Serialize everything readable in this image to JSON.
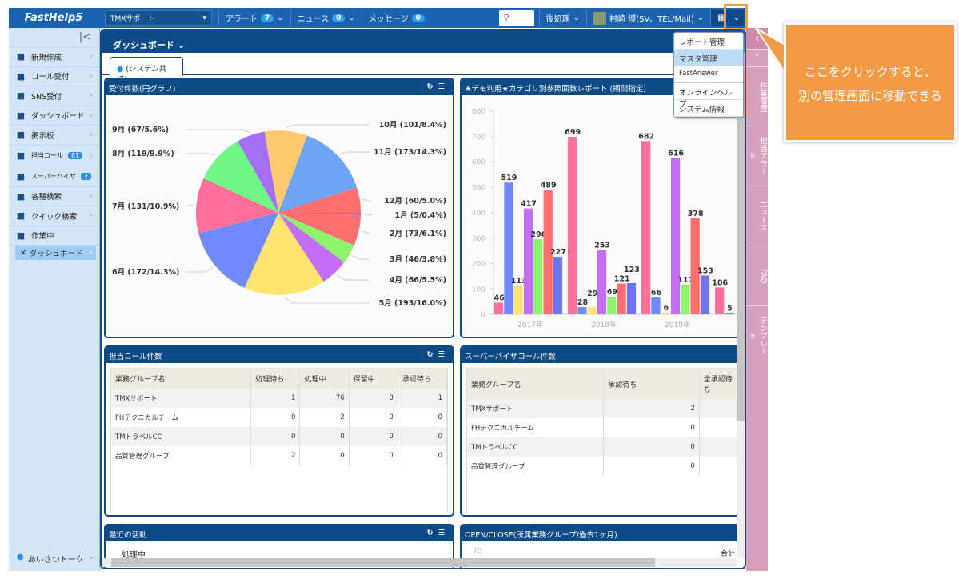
{
  "topbar": {
    "logo": "FastHelp5",
    "group": "TMXサポート",
    "alert": "アラート",
    "alert_count": "7",
    "news": "ニュース",
    "news_count": "0",
    "message": "メッセージ",
    "message_count": "0",
    "search_icon": "search-icon",
    "after": "後処理",
    "user": "村崎 博(SV、TEL/Mail)"
  },
  "sidebar": {
    "items": [
      {
        "label": "新規作成",
        "icon": "new-icon"
      },
      {
        "label": "コール受付",
        "icon": "person-icon"
      },
      {
        "label": "SNS受付",
        "icon": "sns-icon"
      },
      {
        "label": "ダッシュボード",
        "icon": "gauge-icon"
      },
      {
        "label": "掲示板",
        "icon": "board-icon"
      },
      {
        "label": "担当コール",
        "badge": "81",
        "icon": "headset-icon"
      },
      {
        "label": "スーパーバイザ",
        "badge": "2",
        "icon": "sv-icon"
      },
      {
        "label": "各種検索",
        "icon": "search-icon"
      },
      {
        "label": "クイック検索",
        "icon": "quick-search-icon"
      },
      {
        "label": "作業中",
        "icon": "check-icon"
      }
    ],
    "active": "ダッシュボード",
    "footer": "あいさつトーク"
  },
  "main": {
    "title": "ダッシュボード",
    "tab": "(システム共通)"
  },
  "menu": [
    "レポート管理",
    "マスタ管理",
    "FastAnswer",
    "オンラインヘルプ",
    "システム情報"
  ],
  "right_tabs": [
    "作業履歴",
    "担当アラート",
    "ニュース",
    "FAQ",
    "テンプレート"
  ],
  "callout": {
    "line1": "ここをクリックすると、",
    "line2": "別の管理画面に移動できる"
  },
  "widgets": {
    "pie_title": "受付件数(円グラフ)",
    "bar_title": "★デモ利用★カテゴリ別参照回数レポート (期間指定)",
    "calls": {
      "title": "担当コール件数",
      "headers": [
        "業務グループ名",
        "処理待ち",
        "処理中",
        "保留中",
        "承認待ち"
      ],
      "rows": [
        [
          "TMXサポート",
          "1",
          "76",
          "0",
          "1"
        ],
        [
          "FHテクニカルチーム",
          "0",
          "2",
          "0",
          "0"
        ],
        [
          "TMトラベルCC",
          "0",
          "0",
          "0",
          "0"
        ],
        [
          "品質管理グループ",
          "2",
          "0",
          "0",
          "0"
        ]
      ]
    },
    "sv": {
      "title": "スーパーバイザコール件数",
      "headers": [
        "業務グループ名",
        "承認待ち",
        "全承認待ち"
      ],
      "rows": [
        [
          "TMXサポート",
          "2",
          ""
        ],
        [
          "FHテクニカルチーム",
          "0",
          ""
        ],
        [
          "TMトラベルCC",
          "0",
          ""
        ],
        [
          "品質管理グループ",
          "0",
          ""
        ]
      ]
    },
    "activity": {
      "title": "最近の活動",
      "item": "処理中"
    },
    "openclose": {
      "title": "OPEN/CLOSE(所属業務グループ/過去1ヶ月)",
      "ytick": "70",
      "legend": "合計"
    }
  },
  "chart_data": [
    {
      "type": "pie",
      "title": "受付件数(円グラフ)",
      "labels": [
        "1月",
        "2月",
        "3月",
        "4月",
        "5月",
        "6月",
        "7月",
        "8月",
        "9月",
        "10月",
        "11月",
        "12月"
      ],
      "values": [
        5,
        73,
        46,
        66,
        193,
        172,
        131,
        119,
        67,
        101,
        173,
        60
      ],
      "percents": [
        "0.4%",
        "6.1%",
        "3.8%",
        "5.5%",
        "16.0%",
        "14.3%",
        "10.9%",
        "9.9%",
        "5.6%",
        "8.4%",
        "14.3%",
        "5.0%"
      ],
      "colors": [
        "#6f7ff7",
        "#ff6f6f",
        "#8ef56a",
        "#c26ef7",
        "#ffe46f",
        "#6f8aff",
        "#ff6f9a",
        "#6ff788",
        "#a46ff7",
        "#ffca6f",
        "#6fa4f7",
        "#ff6f6f"
      ]
    },
    {
      "type": "bar",
      "title": "★デモ利用★カテゴリ別参照回数レポート (期間指定)",
      "categories": [
        "2017年",
        "2018年",
        "2019年",
        ""
      ],
      "ylim": [
        0,
        800
      ],
      "yticks": [
        0,
        100,
        200,
        300,
        400,
        500,
        600,
        700,
        800
      ],
      "colors": [
        "#ff6f9a",
        "#6f8aff",
        "#ffe46f",
        "#c26ef7",
        "#8ef56a",
        "#ff6f6f",
        "#6f73f7"
      ],
      "groups": [
        [
          46,
          519,
          113,
          417,
          296,
          489,
          227
        ],
        [
          699,
          28,
          29,
          253,
          69,
          121,
          123
        ],
        [
          682,
          66,
          6,
          616,
          117,
          378,
          153
        ],
        [
          106,
          5
        ]
      ]
    }
  ]
}
